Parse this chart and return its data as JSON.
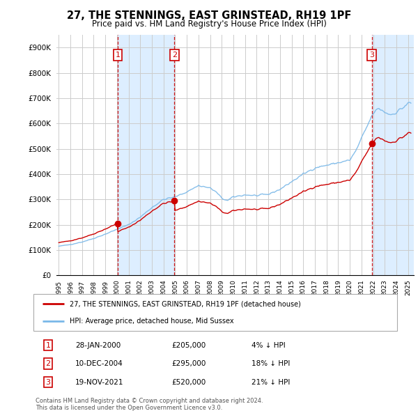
{
  "title": "27, THE STENNINGS, EAST GRINSTEAD, RH19 1PF",
  "subtitle": "Price paid vs. HM Land Registry's House Price Index (HPI)",
  "ylabel_ticks": [
    "£0",
    "£100K",
    "£200K",
    "£300K",
    "£400K",
    "£500K",
    "£600K",
    "£700K",
    "£800K",
    "£900K"
  ],
  "ytick_values": [
    0,
    100000,
    200000,
    300000,
    400000,
    500000,
    600000,
    700000,
    800000,
    900000
  ],
  "ylim": [
    0,
    950000
  ],
  "hpi_color": "#7ab8e8",
  "price_color": "#cc0000",
  "shade_color": "#ddeeff",
  "vline_color": "#cc0000",
  "background_color": "#ffffff",
  "grid_color": "#cccccc",
  "sale_dates": [
    2000.07,
    2004.94,
    2021.88
  ],
  "sale_prices": [
    205000,
    295000,
    520000
  ],
  "sale_labels": [
    "1",
    "2",
    "3"
  ],
  "legend_entry1": "27, THE STENNINGS, EAST GRINSTEAD, RH19 1PF (detached house)",
  "legend_entry2": "HPI: Average price, detached house, Mid Sussex",
  "table_rows": [
    [
      "1",
      "28-JAN-2000",
      "£205,000",
      "4% ↓ HPI"
    ],
    [
      "2",
      "10-DEC-2004",
      "£295,000",
      "18% ↓ HPI"
    ],
    [
      "3",
      "19-NOV-2021",
      "£520,000",
      "21% ↓ HPI"
    ]
  ],
  "footnote1": "Contains HM Land Registry data © Crown copyright and database right 2024.",
  "footnote2": "This data is licensed under the Open Government Licence v3.0.",
  "xstart": 1995,
  "xend": 2025.5
}
